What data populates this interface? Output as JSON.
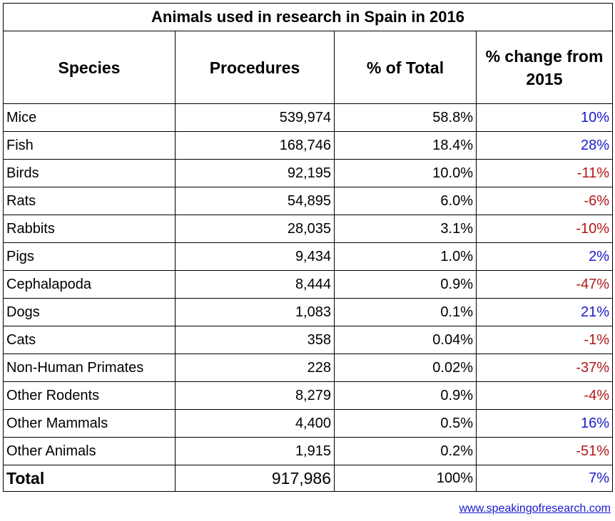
{
  "title": "Animals used in research in Spain in 2016",
  "headers": {
    "species": "Species",
    "procedures": "Procedures",
    "percent_total": "% of Total",
    "percent_change": "% change from 2015"
  },
  "rows": [
    {
      "species": "Mice",
      "procedures": "539,974",
      "percent_total": "58.8%",
      "percent_change": "10%",
      "change_sign": "pos"
    },
    {
      "species": "Fish",
      "procedures": "168,746",
      "percent_total": "18.4%",
      "percent_change": "28%",
      "change_sign": "pos"
    },
    {
      "species": "Birds",
      "procedures": "92,195",
      "percent_total": "10.0%",
      "percent_change": "-11%",
      "change_sign": "neg"
    },
    {
      "species": "Rats",
      "procedures": "54,895",
      "percent_total": "6.0%",
      "percent_change": "-6%",
      "change_sign": "neg"
    },
    {
      "species": "Rabbits",
      "procedures": "28,035",
      "percent_total": "3.1%",
      "percent_change": "-10%",
      "change_sign": "neg"
    },
    {
      "species": "Pigs",
      "procedures": "9,434",
      "percent_total": "1.0%",
      "percent_change": "2%",
      "change_sign": "pos"
    },
    {
      "species": "Cephalapoda",
      "procedures": "8,444",
      "percent_total": "0.9%",
      "percent_change": "-47%",
      "change_sign": "neg"
    },
    {
      "species": "Dogs",
      "procedures": "1,083",
      "percent_total": "0.1%",
      "percent_change": "21%",
      "change_sign": "pos"
    },
    {
      "species": "Cats",
      "procedures": "358",
      "percent_total": "0.04%",
      "percent_change": "-1%",
      "change_sign": "neg"
    },
    {
      "species": "Non-Human Primates",
      "procedures": "228",
      "percent_total": "0.02%",
      "percent_change": "-37%",
      "change_sign": "neg"
    },
    {
      "species": "Other Rodents",
      "procedures": "8,279",
      "percent_total": "0.9%",
      "percent_change": "-4%",
      "change_sign": "neg"
    },
    {
      "species": "Other Mammals",
      "procedures": "4,400",
      "percent_total": "0.5%",
      "percent_change": "16%",
      "change_sign": "pos"
    },
    {
      "species": "Other Animals",
      "procedures": "1,915",
      "percent_total": "0.2%",
      "percent_change": "-51%",
      "change_sign": "neg"
    }
  ],
  "total": {
    "species": "Total",
    "procedures": "917,986",
    "percent_total": "100%",
    "percent_change": "7%",
    "change_sign": "pos"
  },
  "source": "www.speakingofresearch.com",
  "colors": {
    "positive": "#1a1acc",
    "negative": "#b01818"
  }
}
